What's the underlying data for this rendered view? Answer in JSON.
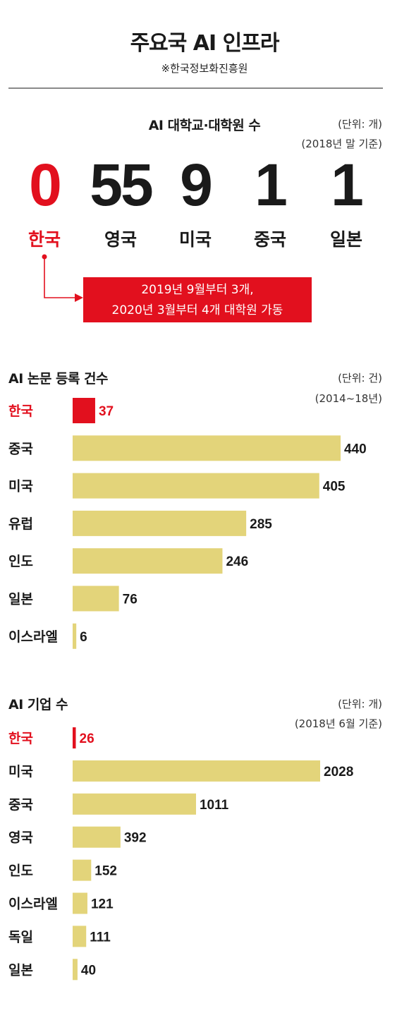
{
  "header": {
    "title": "주요국 AI 인프라",
    "source": "※한국정보화진흥원"
  },
  "section1": {
    "title": "AI 대학교·대학원 수",
    "unit": "(단위: 개)",
    "basis": "(2018년 말 기준)",
    "items": [
      {
        "country": "한국",
        "value": "0",
        "highlight": true
      },
      {
        "country": "영국",
        "value": "55",
        "highlight": false
      },
      {
        "country": "미국",
        "value": "9",
        "highlight": false
      },
      {
        "country": "중국",
        "value": "1",
        "highlight": false
      },
      {
        "country": "일본",
        "value": "1",
        "highlight": false
      }
    ],
    "callout": [
      "2019년 9월부터 3개,",
      "2020년 3월부터 4개 대학원 가동"
    ]
  },
  "chart_data": [
    {
      "type": "bar",
      "orientation": "horizontal",
      "title": "AI 논문 등록 건수",
      "unit": "(단위: 건)",
      "period": "(2014~18년)",
      "categories": [
        "한국",
        "중국",
        "미국",
        "유럽",
        "인도",
        "일본",
        "이스라엘"
      ],
      "values": [
        37,
        440,
        405,
        285,
        246,
        76,
        6
      ],
      "highlight": [
        "한국"
      ],
      "colors": {
        "highlight": "#e2101e",
        "default": "#e3d47a"
      }
    },
    {
      "type": "bar",
      "orientation": "horizontal",
      "title": "AI 기업 수",
      "unit": "(단위: 개)",
      "period": "(2018년 6월 기준)",
      "categories": [
        "한국",
        "미국",
        "중국",
        "영국",
        "인도",
        "이스라엘",
        "독일",
        "일본"
      ],
      "values": [
        26,
        2028,
        1011,
        392,
        152,
        121,
        111,
        40
      ],
      "highlight": [
        "한국"
      ],
      "colors": {
        "highlight": "#e2101e",
        "default": "#e3d47a"
      }
    }
  ]
}
